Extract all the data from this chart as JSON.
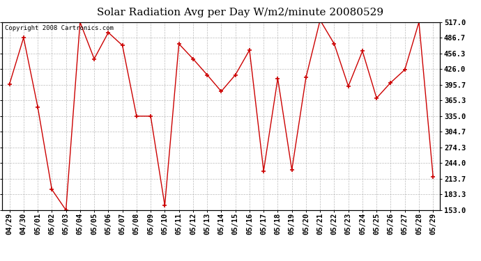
{
  "title": "Solar Radiation Avg per Day W/m2/minute 20080529",
  "copyright_text": "Copyright 2008 Cartronics.com",
  "labels": [
    "04/29",
    "04/30",
    "05/01",
    "05/02",
    "05/03",
    "05/04",
    "05/05",
    "05/06",
    "05/07",
    "05/08",
    "05/09",
    "05/10",
    "05/11",
    "05/12",
    "05/13",
    "05/14",
    "05/15",
    "05/16",
    "05/17",
    "05/18",
    "05/19",
    "05/20",
    "05/21",
    "05/22",
    "05/23",
    "05/24",
    "05/25",
    "05/26",
    "05/27",
    "05/28",
    "05/29"
  ],
  "values": [
    397.0,
    487.0,
    353.0,
    193.0,
    153.0,
    517.0,
    446.0,
    497.0,
    472.0,
    335.0,
    335.0,
    162.0,
    475.0,
    446.0,
    415.0,
    383.0,
    415.0,
    463.0,
    229.0,
    408.0,
    231.0,
    410.0,
    521.0,
    475.0,
    393.0,
    461.0,
    370.0,
    400.0,
    425.0,
    517.0,
    218.0
  ],
  "line_color": "#cc0000",
  "marker_color": "#cc0000",
  "bg_color": "#ffffff",
  "plot_bg_color": "#ffffff",
  "grid_color": "#aaaaaa",
  "title_fontsize": 11,
  "copyright_fontsize": 6.5,
  "tick_fontsize": 7.5,
  "ylim": [
    153.0,
    517.0
  ],
  "yticks": [
    153.0,
    183.3,
    213.7,
    244.0,
    274.3,
    304.7,
    335.0,
    365.3,
    395.7,
    426.0,
    456.3,
    486.7,
    517.0
  ]
}
